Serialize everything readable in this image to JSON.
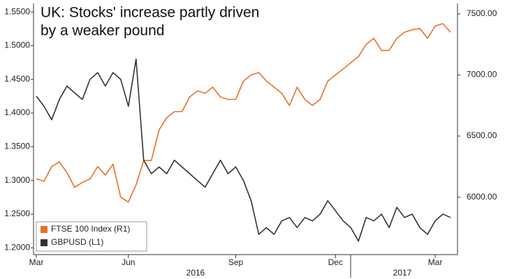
{
  "chart_data": {
    "type": "line",
    "title": [
      "UK: Stocks' increase partly driven",
      "by a weaker pound"
    ],
    "categories": [
      "Mar",
      null,
      null,
      null,
      null,
      null,
      null,
      null,
      null,
      null,
      null,
      null,
      "Jun",
      null,
      null,
      null,
      null,
      null,
      null,
      null,
      null,
      null,
      null,
      null,
      null,
      null,
      "Sep",
      null,
      null,
      null,
      null,
      null,
      null,
      null,
      null,
      null,
      null,
      null,
      null,
      "Dec",
      null,
      null,
      null,
      null,
      null,
      null,
      null,
      null,
      null,
      null,
      null,
      null,
      "Mar",
      null,
      null
    ],
    "year_labels": [
      "2016",
      "2017"
    ],
    "series": [
      {
        "name": "FTSE 100 Index (R1)",
        "color": "#e8702a",
        "axis": "y2",
        "values": [
          6150,
          6130,
          6250,
          6290,
          6200,
          6080,
          6120,
          6150,
          6250,
          6180,
          6270,
          6000,
          5960,
          6100,
          6300,
          6300,
          6550,
          6650,
          6700,
          6700,
          6820,
          6870,
          6850,
          6900,
          6820,
          6800,
          6800,
          6950,
          7000,
          7020,
          6950,
          6900,
          6850,
          6750,
          6900,
          6800,
          6750,
          6800,
          6950,
          7000,
          7050,
          7100,
          7150,
          7250,
          7300,
          7200,
          7200,
          7300,
          7350,
          7370,
          7380,
          7300,
          7400,
          7420,
          7350
        ]
      },
      {
        "name": "GBPUSD (L1)",
        "color": "#333333",
        "values": [
          1.425,
          1.41,
          1.39,
          1.42,
          1.44,
          1.43,
          1.42,
          1.45,
          1.46,
          1.44,
          1.46,
          1.45,
          1.41,
          1.48,
          1.33,
          1.31,
          1.32,
          1.31,
          1.33,
          1.32,
          1.31,
          1.3,
          1.29,
          1.31,
          1.33,
          1.31,
          1.32,
          1.3,
          1.27,
          1.22,
          1.23,
          1.22,
          1.24,
          1.245,
          1.23,
          1.245,
          1.24,
          1.25,
          1.27,
          1.255,
          1.24,
          1.23,
          1.21,
          1.245,
          1.24,
          1.25,
          1.23,
          1.26,
          1.245,
          1.25,
          1.23,
          1.22,
          1.24,
          1.25,
          1.245
        ]
      }
    ],
    "ylim": [
      1.19,
      1.5625
    ],
    "yticks": [
      {
        "value": 1.2,
        "label": "1.2000"
      },
      {
        "value": 1.25,
        "label": "1.2500"
      },
      {
        "value": 1.3,
        "label": "1.3000"
      },
      {
        "value": 1.35,
        "label": "1.3500"
      },
      {
        "value": 1.4,
        "label": "1.4000"
      },
      {
        "value": 1.45,
        "label": "1.4500"
      },
      {
        "value": 1.5,
        "label": "1.5000"
      },
      {
        "value": 1.55,
        "label": "1.5500"
      }
    ],
    "y2lim": [
      5530,
      7585
    ],
    "y2ticks": [
      {
        "value": 6000,
        "label": "6000.00"
      },
      {
        "value": 6500,
        "label": "6500.00"
      },
      {
        "value": 7000,
        "label": "7000.00"
      },
      {
        "value": 7500,
        "label": "7500.00"
      }
    ],
    "legend": "lower left"
  }
}
